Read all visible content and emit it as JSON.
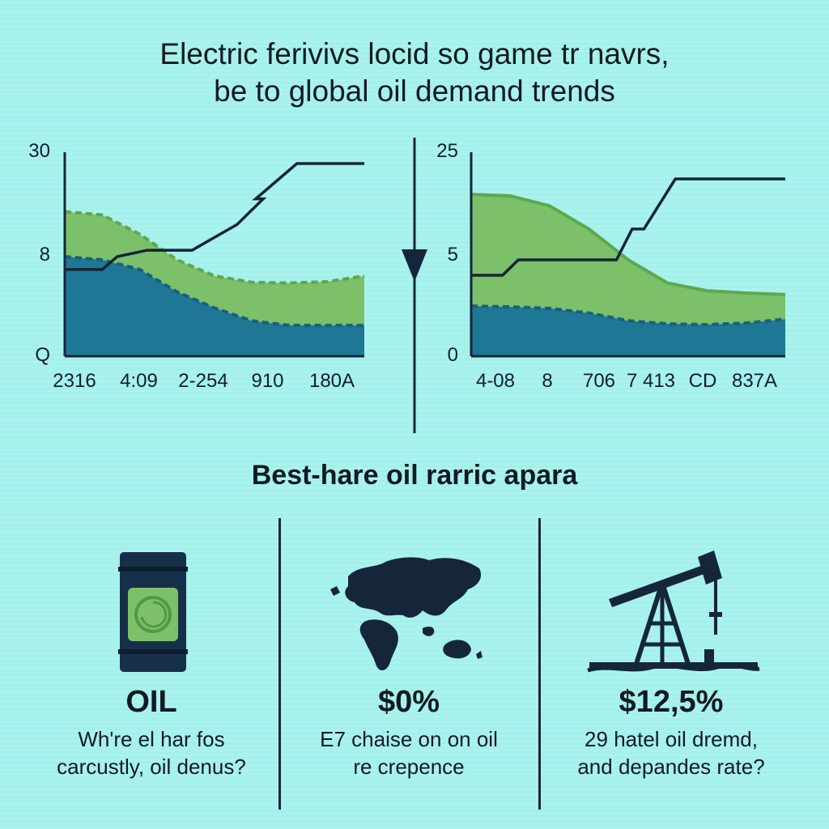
{
  "title": {
    "line1": "Electric ferivivs locid so game tr navrs,",
    "line2": "be to global oil demand trends"
  },
  "colors": {
    "background": "#a4f1ec",
    "green_area": "#7cc06a",
    "green_dashed": "#5da84e",
    "blue_area": "#1f7796",
    "blue_dashed": "#1a5f80",
    "line": "#142436"
  },
  "chart_data": [
    {
      "type": "area",
      "title": "",
      "y_tick_labels": [
        "30",
        "8",
        "Q"
      ],
      "x_tick_labels": [
        "2316",
        "4:09",
        "2-254",
        "910",
        "180A"
      ],
      "ylim": [
        0,
        30
      ],
      "xlim": [
        0,
        4
      ],
      "grid": false,
      "series": [
        {
          "kind": "area",
          "color": "#7cc06a",
          "edge": "#5da84e",
          "dashed": true,
          "x": [
            0,
            0.5,
            1,
            1.5,
            2,
            2.5,
            3,
            3.5,
            4
          ],
          "y": [
            22.5,
            22,
            19,
            15,
            12.5,
            11.5,
            11.4,
            11.6,
            12.5
          ]
        },
        {
          "kind": "area",
          "color": "#1f7796",
          "edge": "#1a5f80",
          "dashed": true,
          "x": [
            0,
            0.5,
            1,
            1.5,
            2,
            2.5,
            3,
            3.5,
            4
          ],
          "y": [
            15.5,
            15,
            13.5,
            10,
            7.5,
            5.5,
            4.8,
            4.8,
            4.8
          ]
        },
        {
          "kind": "line",
          "color": "#142436",
          "x": [
            0,
            0.5,
            0.7,
            1.1,
            1.7,
            2.3,
            2.65,
            2.55,
            3.1,
            4
          ],
          "y": [
            13.5,
            13.5,
            15.5,
            16.5,
            16.5,
            20.5,
            24.5,
            24.5,
            30,
            30
          ]
        }
      ]
    },
    {
      "type": "area",
      "title": "",
      "y_tick_labels": [
        "25",
        "5",
        "0"
      ],
      "x_tick_labels": [
        "4-08",
        "8",
        "706",
        "7 413",
        "CD",
        "837A"
      ],
      "ylim": [
        0,
        25
      ],
      "xlim": [
        0,
        4
      ],
      "grid": false,
      "series": [
        {
          "kind": "area",
          "color": "#7cc06a",
          "edge": "#5da84e",
          "dashed": false,
          "x": [
            0,
            0.5,
            1,
            1.5,
            2,
            2.5,
            3,
            3.5,
            4
          ],
          "y": [
            21,
            20.8,
            19.5,
            16.5,
            12.5,
            9.5,
            8.5,
            8.2,
            8
          ]
        },
        {
          "kind": "area",
          "color": "#1f7796",
          "edge": "#1a5f80",
          "dashed": true,
          "x": [
            0,
            0.5,
            1,
            1.5,
            2,
            2.5,
            3,
            3.5,
            4
          ],
          "y": [
            6.5,
            6.4,
            6.2,
            5.6,
            4.6,
            4.2,
            4.1,
            4.3,
            4.8
          ]
        },
        {
          "kind": "line",
          "color": "#142436",
          "x": [
            0,
            0.4,
            0.6,
            1.2,
            1.85,
            2.05,
            2.2,
            2.6,
            4
          ],
          "y": [
            10.5,
            10.5,
            12.5,
            12.5,
            12.5,
            16.5,
            16.5,
            23,
            23
          ]
        }
      ]
    }
  ],
  "section_heading": "Best-hare oil rarric apara",
  "stats": [
    {
      "icon": "oil-barrel-icon",
      "value": "OIL",
      "desc_line1": "Wh're el har fos",
      "desc_line2": "carcustly, oil denus?"
    },
    {
      "icon": "world-map-icon",
      "value": "$0%",
      "desc_line1": "E7 chaise on on oil",
      "desc_line2": "re crepence"
    },
    {
      "icon": "oil-pumpjack-icon",
      "value": "$12,5%",
      "desc_line1": "29 hatel oil dremd,",
      "desc_line2": "and depandes rate?"
    }
  ]
}
